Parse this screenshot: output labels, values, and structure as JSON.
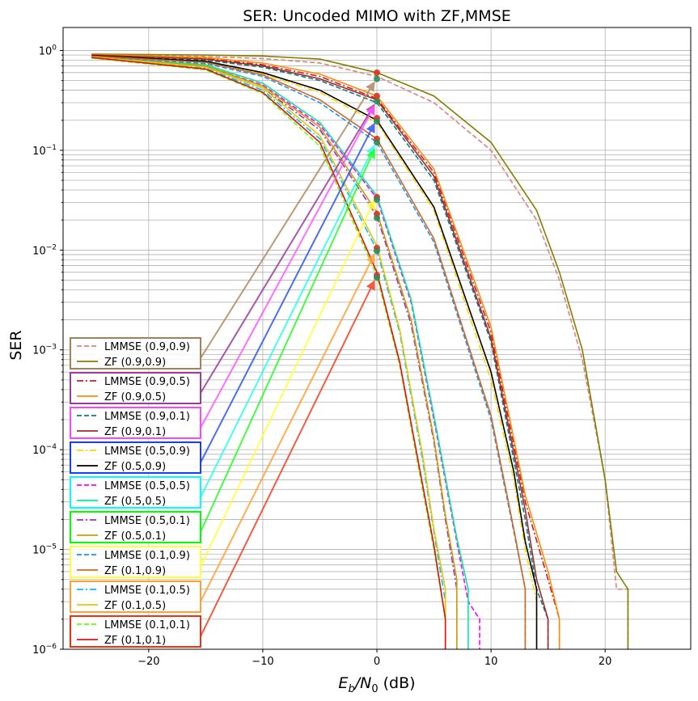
{
  "chart_data": {
    "type": "line",
    "title": "SER: Uncoded MIMO with ZF,MMSE",
    "xlabel_main": "E",
    "xlabel_sub1": "b",
    "xlabel_mid": "/N",
    "xlabel_sub2": "0",
    "xlabel_unit": " (dB)",
    "ylabel": "SER",
    "xscale": "linear",
    "yscale": "log",
    "xlim": [
      -27.5,
      27.5
    ],
    "ylim": [
      1e-06,
      1.7
    ],
    "grid": "major and minor",
    "legend_position": "lower-left",
    "x_ticks": [
      {
        "v": -20,
        "label": "−20"
      },
      {
        "v": -10,
        "label": "−10"
      },
      {
        "v": 0,
        "label": "0"
      },
      {
        "v": 10,
        "label": "10"
      },
      {
        "v": 20,
        "label": "20"
      }
    ],
    "y_ticks": [
      {
        "v": 1,
        "base": "10",
        "exp": "0"
      },
      {
        "v": 0.1,
        "base": "10",
        "exp": "−1"
      },
      {
        "v": 0.01,
        "base": "10",
        "exp": "−2"
      },
      {
        "v": 0.001,
        "base": "10",
        "exp": "−3"
      },
      {
        "v": 0.0001,
        "base": "10",
        "exp": "−4"
      },
      {
        "v": 1e-05,
        "base": "10",
        "exp": "−5"
      },
      {
        "v": 1e-06,
        "base": "10",
        "exp": "−6"
      }
    ],
    "series": [
      {
        "name": "LMMSE (0.9,0.9)",
        "color": "#e08080",
        "dash": "6,3",
        "points": [
          [
            -25,
            0.9
          ],
          [
            -15,
            0.87
          ],
          [
            -10,
            0.83
          ],
          [
            -5,
            0.75
          ],
          [
            0,
            0.55
          ],
          [
            5,
            0.3
          ],
          [
            10,
            0.1
          ],
          [
            14,
            0.02
          ],
          [
            16,
            0.005
          ],
          [
            18,
            0.0008
          ],
          [
            20,
            5e-05
          ],
          [
            21,
            4e-06
          ],
          [
            22,
            4e-06
          ],
          [
            22,
            1e-06
          ]
        ]
      },
      {
        "name": "ZF (0.9,0.9)",
        "color": "#808000",
        "dash": "",
        "points": [
          [
            -25,
            0.92
          ],
          [
            -15,
            0.9
          ],
          [
            -10,
            0.88
          ],
          [
            -5,
            0.82
          ],
          [
            0,
            0.6
          ],
          [
            5,
            0.35
          ],
          [
            10,
            0.12
          ],
          [
            14,
            0.025
          ],
          [
            16,
            0.006
          ],
          [
            18,
            0.001
          ],
          [
            20,
            5e-05
          ],
          [
            21,
            6e-06
          ],
          [
            22,
            4e-06
          ],
          [
            22,
            1e-06
          ]
        ]
      },
      {
        "name": "LMMSE (0.9,0.5)",
        "color": "#cc1a30",
        "dash": "8,3,2,3",
        "points": [
          [
            -25,
            0.9
          ],
          [
            -15,
            0.83
          ],
          [
            -10,
            0.72
          ],
          [
            -5,
            0.55
          ],
          [
            0,
            0.33
          ],
          [
            5,
            0.06
          ],
          [
            10,
            0.0015
          ],
          [
            13,
            3e-05
          ],
          [
            15,
            5e-06
          ],
          [
            16,
            2e-06
          ],
          [
            16,
            1e-06
          ]
        ]
      },
      {
        "name": "ZF (0.9,0.5)",
        "color": "#ff8c00",
        "dash": "",
        "points": [
          [
            -25,
            0.91
          ],
          [
            -15,
            0.85
          ],
          [
            -10,
            0.75
          ],
          [
            -5,
            0.58
          ],
          [
            0,
            0.35
          ],
          [
            5,
            0.065
          ],
          [
            10,
            0.0017
          ],
          [
            13,
            3.5e-05
          ],
          [
            15,
            6e-06
          ],
          [
            16,
            2e-06
          ],
          [
            16,
            1e-06
          ]
        ]
      },
      {
        "name": "LMMSE (0.9,0.1)",
        "color": "#008080",
        "dash": "6,3",
        "points": [
          [
            -25,
            0.88
          ],
          [
            -15,
            0.8
          ],
          [
            -10,
            0.68
          ],
          [
            -5,
            0.5
          ],
          [
            0,
            0.3
          ],
          [
            5,
            0.05
          ],
          [
            10,
            0.0012
          ],
          [
            13,
            2e-05
          ],
          [
            14,
            4e-06
          ],
          [
            15,
            2e-06
          ],
          [
            15,
            1e-06
          ]
        ]
      },
      {
        "name": "ZF (0.9,0.1)",
        "color": "#a52a2a",
        "dash": "",
        "points": [
          [
            -25,
            0.9
          ],
          [
            -15,
            0.82
          ],
          [
            -10,
            0.7
          ],
          [
            -5,
            0.52
          ],
          [
            0,
            0.32
          ],
          [
            5,
            0.055
          ],
          [
            10,
            0.0013
          ],
          [
            13,
            2.5e-05
          ],
          [
            14,
            5e-06
          ],
          [
            15,
            2e-06
          ],
          [
            15,
            1e-06
          ]
        ]
      },
      {
        "name": "LMMSE (0.5,0.9)",
        "color": "#ffd700",
        "dash": "8,3,2,3",
        "points": [
          [
            -25,
            0.88
          ],
          [
            -15,
            0.76
          ],
          [
            -10,
            0.58
          ],
          [
            -5,
            0.38
          ],
          [
            0,
            0.19
          ],
          [
            5,
            0.025
          ],
          [
            10,
            0.0005
          ],
          [
            12,
            5e-05
          ],
          [
            13,
            1e-05
          ],
          [
            14,
            3e-06
          ],
          [
            14,
            1e-06
          ]
        ]
      },
      {
        "name": "ZF (0.5,0.9)",
        "color": "#000000",
        "dash": "",
        "points": [
          [
            -25,
            0.89
          ],
          [
            -15,
            0.78
          ],
          [
            -10,
            0.6
          ],
          [
            -5,
            0.4
          ],
          [
            0,
            0.2
          ],
          [
            5,
            0.027
          ],
          [
            10,
            0.0006
          ],
          [
            12,
            6e-05
          ],
          [
            13,
            1.2e-05
          ],
          [
            14,
            4e-06
          ],
          [
            14,
            1e-06
          ]
        ]
      },
      {
        "name": "LMMSE (0.5,0.5)",
        "color": "#ff00ff",
        "dash": "6,3",
        "points": [
          [
            -25,
            0.86
          ],
          [
            -15,
            0.7
          ],
          [
            -10,
            0.45
          ],
          [
            -5,
            0.18
          ],
          [
            0,
            0.033
          ],
          [
            3,
            0.003
          ],
          [
            5,
            0.0002
          ],
          [
            7,
            1.2e-05
          ],
          [
            8,
            3e-06
          ],
          [
            9,
            2e-06
          ],
          [
            9,
            1e-06
          ]
        ]
      },
      {
        "name": "ZF (0.5,0.5)",
        "color": "#00ee99",
        "dash": "",
        "points": [
          [
            -25,
            0.87
          ],
          [
            -15,
            0.72
          ],
          [
            -10,
            0.47
          ],
          [
            -5,
            0.19
          ],
          [
            0,
            0.035
          ],
          [
            3,
            0.0032
          ],
          [
            5,
            0.00022
          ],
          [
            7,
            1.3e-05
          ],
          [
            8,
            4e-06
          ],
          [
            8,
            1e-06
          ]
        ]
      },
      {
        "name": "LMMSE (0.5,0.1)",
        "color": "#9932cc",
        "dash": "8,3,2,3",
        "points": [
          [
            -25,
            0.85
          ],
          [
            -15,
            0.68
          ],
          [
            -10,
            0.42
          ],
          [
            -5,
            0.16
          ],
          [
            0,
            0.022
          ],
          [
            3,
            0.0018
          ],
          [
            5,
            0.00012
          ],
          [
            6,
            2e-05
          ],
          [
            7,
            4e-06
          ],
          [
            7,
            1e-06
          ]
        ]
      },
      {
        "name": "ZF (0.5,0.1)",
        "color": "#c8a000",
        "dash": "",
        "points": [
          [
            -25,
            0.86
          ],
          [
            -15,
            0.7
          ],
          [
            -10,
            0.44
          ],
          [
            -5,
            0.17
          ],
          [
            0,
            0.024
          ],
          [
            3,
            0.002
          ],
          [
            5,
            0.00013
          ],
          [
            6,
            2.2e-05
          ],
          [
            7,
            5e-06
          ],
          [
            7,
            1e-06
          ]
        ]
      },
      {
        "name": "LMMSE (0.1,0.9)",
        "color": "#1e90ff",
        "dash": "6,3",
        "points": [
          [
            -25,
            0.87
          ],
          [
            -15,
            0.74
          ],
          [
            -10,
            0.55
          ],
          [
            -5,
            0.3
          ],
          [
            0,
            0.12
          ],
          [
            5,
            0.012
          ],
          [
            10,
            0.0002
          ],
          [
            12,
            1.5e-05
          ],
          [
            13,
            4e-06
          ],
          [
            13,
            1e-06
          ]
        ]
      },
      {
        "name": "ZF (0.1,0.9)",
        "color": "#d2691e",
        "dash": "",
        "points": [
          [
            -25,
            0.88
          ],
          [
            -15,
            0.76
          ],
          [
            -10,
            0.57
          ],
          [
            -5,
            0.32
          ],
          [
            0,
            0.13
          ],
          [
            5,
            0.013
          ],
          [
            10,
            0.00022
          ],
          [
            12,
            1.6e-05
          ],
          [
            13,
            4e-06
          ],
          [
            13,
            1e-06
          ]
        ]
      },
      {
        "name": "LMMSE (0.1,0.5)",
        "color": "#00bfff",
        "dash": "8,3,2,3",
        "points": [
          [
            -25,
            0.85
          ],
          [
            -15,
            0.66
          ],
          [
            -10,
            0.4
          ],
          [
            -5,
            0.13
          ],
          [
            0,
            0.01
          ],
          [
            2,
            0.0015
          ],
          [
            4,
            8e-05
          ],
          [
            5,
            1.5e-05
          ],
          [
            6,
            3e-06
          ],
          [
            6,
            1e-06
          ]
        ]
      },
      {
        "name": "ZF (0.1,0.5)",
        "color": "#e6c800",
        "dash": "",
        "points": [
          [
            -25,
            0.86
          ],
          [
            -15,
            0.68
          ],
          [
            -10,
            0.42
          ],
          [
            -5,
            0.14
          ],
          [
            0,
            0.011
          ],
          [
            2,
            0.0016
          ],
          [
            4,
            9e-05
          ],
          [
            5,
            1.6e-05
          ],
          [
            6,
            4e-06
          ],
          [
            6,
            1e-06
          ]
        ]
      },
      {
        "name": "LMMSE (0.1,0.1)",
        "color": "#66ff00",
        "dash": "6,3",
        "points": [
          [
            -25,
            0.84
          ],
          [
            -15,
            0.64
          ],
          [
            -10,
            0.37
          ],
          [
            -5,
            0.11
          ],
          [
            0,
            0.0055
          ],
          [
            2,
            0.0007
          ],
          [
            4,
            4e-05
          ],
          [
            5,
            1e-05
          ],
          [
            6,
            2e-06
          ],
          [
            6,
            1e-06
          ]
        ]
      },
      {
        "name": "ZF (0.1,0.1)",
        "color": "#e01010",
        "dash": "",
        "points": [
          [
            -25,
            0.85
          ],
          [
            -15,
            0.65
          ],
          [
            -10,
            0.38
          ],
          [
            -5,
            0.12
          ],
          [
            0,
            0.006
          ],
          [
            2,
            0.00075
          ],
          [
            4,
            4.5e-05
          ],
          [
            5,
            1.1e-05
          ],
          [
            6,
            2e-06
          ],
          [
            6,
            1e-06
          ]
        ]
      }
    ],
    "markers": [
      {
        "x": 0,
        "y": 0.6,
        "color": "#e03020"
      },
      {
        "x": 0,
        "y": 0.52,
        "color": "#2e8b57"
      },
      {
        "x": 0,
        "y": 0.35,
        "color": "#e03020"
      },
      {
        "x": 0,
        "y": 0.31,
        "color": "#2e8b57"
      },
      {
        "x": 0,
        "y": 0.21,
        "color": "#e03020"
      },
      {
        "x": 0,
        "y": 0.195,
        "color": "#2e8b57"
      },
      {
        "x": 0,
        "y": 0.13,
        "color": "#e03020"
      },
      {
        "x": 0,
        "y": 0.12,
        "color": "#2e8b57"
      },
      {
        "x": 0,
        "y": 0.034,
        "color": "#e03020"
      },
      {
        "x": 0,
        "y": 0.032,
        "color": "#2e8b57"
      },
      {
        "x": 0,
        "y": 0.023,
        "color": "#e03020"
      },
      {
        "x": 0,
        "y": 0.021,
        "color": "#2e8b57"
      },
      {
        "x": 0,
        "y": 0.0105,
        "color": "#e03020"
      },
      {
        "x": 0,
        "y": 0.0098,
        "color": "#2e8b57"
      },
      {
        "x": 0,
        "y": 0.0056,
        "color": "#e03020"
      },
      {
        "x": 0,
        "y": 0.0053,
        "color": "#2e8b57"
      }
    ],
    "legend_groups": [
      {
        "box_color": "#a0825a",
        "arrow_color": "#b08860",
        "target": [
          0,
          0.52
        ],
        "items": [
          0,
          1
        ]
      },
      {
        "box_color": "#9b3c9b",
        "arrow_color": "#9b3c9b",
        "target": [
          0,
          0.31
        ],
        "items": [
          2,
          3
        ]
      },
      {
        "box_color": "#ff44ff",
        "arrow_color": "#ff55ff",
        "target": [
          0,
          0.3
        ],
        "items": [
          4,
          5
        ]
      },
      {
        "box_color": "#1a3cff",
        "arrow_color": "#2d55ee",
        "target": [
          0,
          0.2
        ],
        "items": [
          6,
          7
        ]
      },
      {
        "box_color": "#00ffff",
        "arrow_color": "#22ffee",
        "target": [
          0,
          0.12
        ],
        "items": [
          8,
          9
        ]
      },
      {
        "box_color": "#00ff00",
        "arrow_color": "#22ff22",
        "target": [
          0,
          0.11
        ],
        "items": [
          10,
          11
        ]
      },
      {
        "box_color": "#ffff33",
        "arrow_color": "#ffff33",
        "target": [
          0,
          0.034
        ],
        "items": [
          12,
          13
        ]
      },
      {
        "box_color": "#ffa033",
        "arrow_color": "#ffa033",
        "target": [
          0,
          0.0098
        ],
        "items": [
          14,
          15
        ]
      },
      {
        "box_color": "#f03010",
        "arrow_color": "#f04020",
        "target": [
          0,
          0.0053
        ],
        "items": [
          16,
          17
        ]
      }
    ]
  }
}
